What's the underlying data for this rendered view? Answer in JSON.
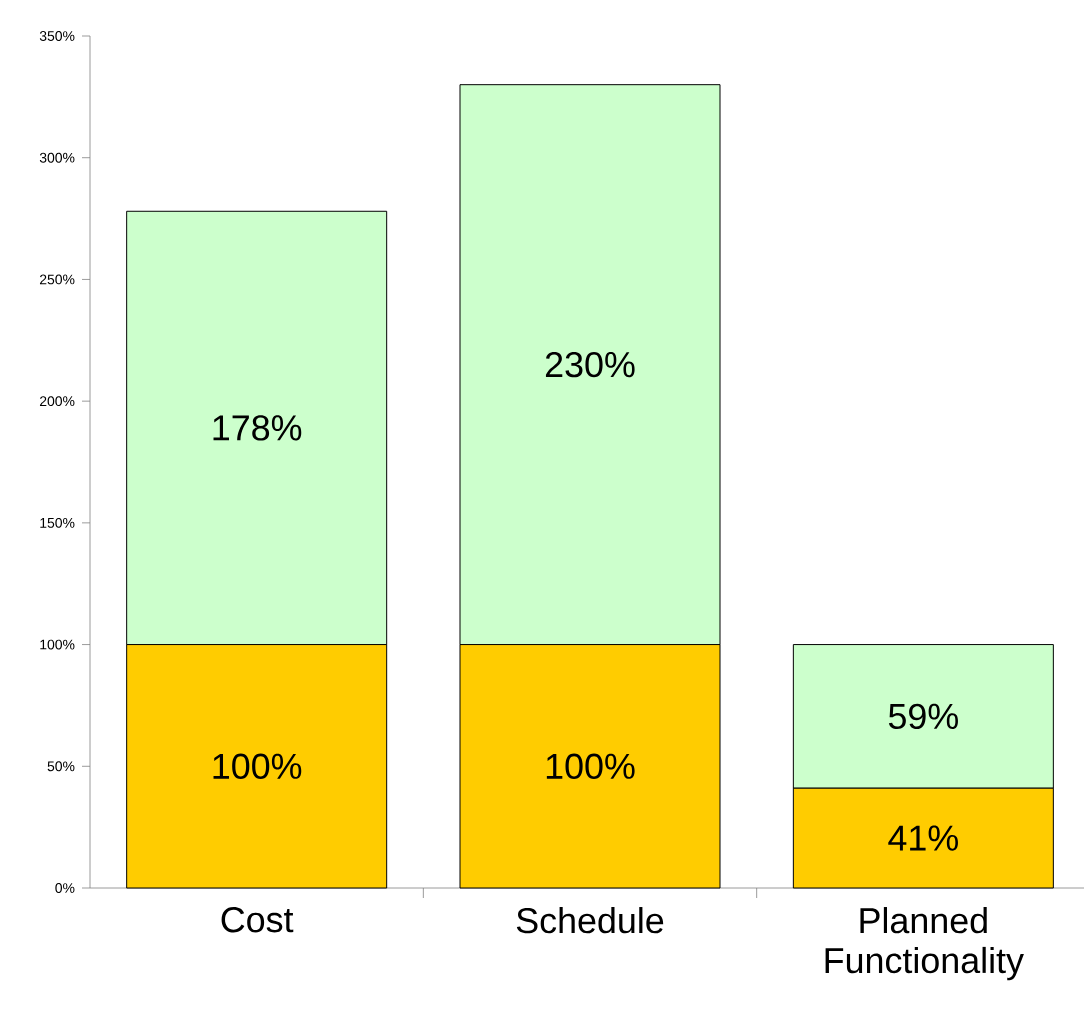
{
  "chart_data": {
    "type": "bar",
    "stacked": true,
    "categories": [
      "Cost",
      "Schedule",
      "Planned Functionality"
    ],
    "series": [
      {
        "color": "#ffcc00",
        "values": [
          100,
          100,
          41
        ],
        "value_labels": [
          "100%",
          "100%",
          "41%"
        ]
      },
      {
        "color": "#ccffcc",
        "values": [
          178,
          230,
          59
        ],
        "value_labels": [
          "178%",
          "230%",
          "59%"
        ]
      }
    ],
    "ylim": [
      0,
      350
    ],
    "yticks": [
      {
        "value": 0,
        "label": "0%"
      },
      {
        "value": 50,
        "label": "50%"
      },
      {
        "value": 100,
        "label": "100%"
      },
      {
        "value": 150,
        "label": "150%"
      },
      {
        "value": 200,
        "label": "200%"
      },
      {
        "value": 250,
        "label": "250%"
      },
      {
        "value": 300,
        "label": "300%"
      },
      {
        "value": 350,
        "label": "350%"
      }
    ],
    "grid": false
  }
}
